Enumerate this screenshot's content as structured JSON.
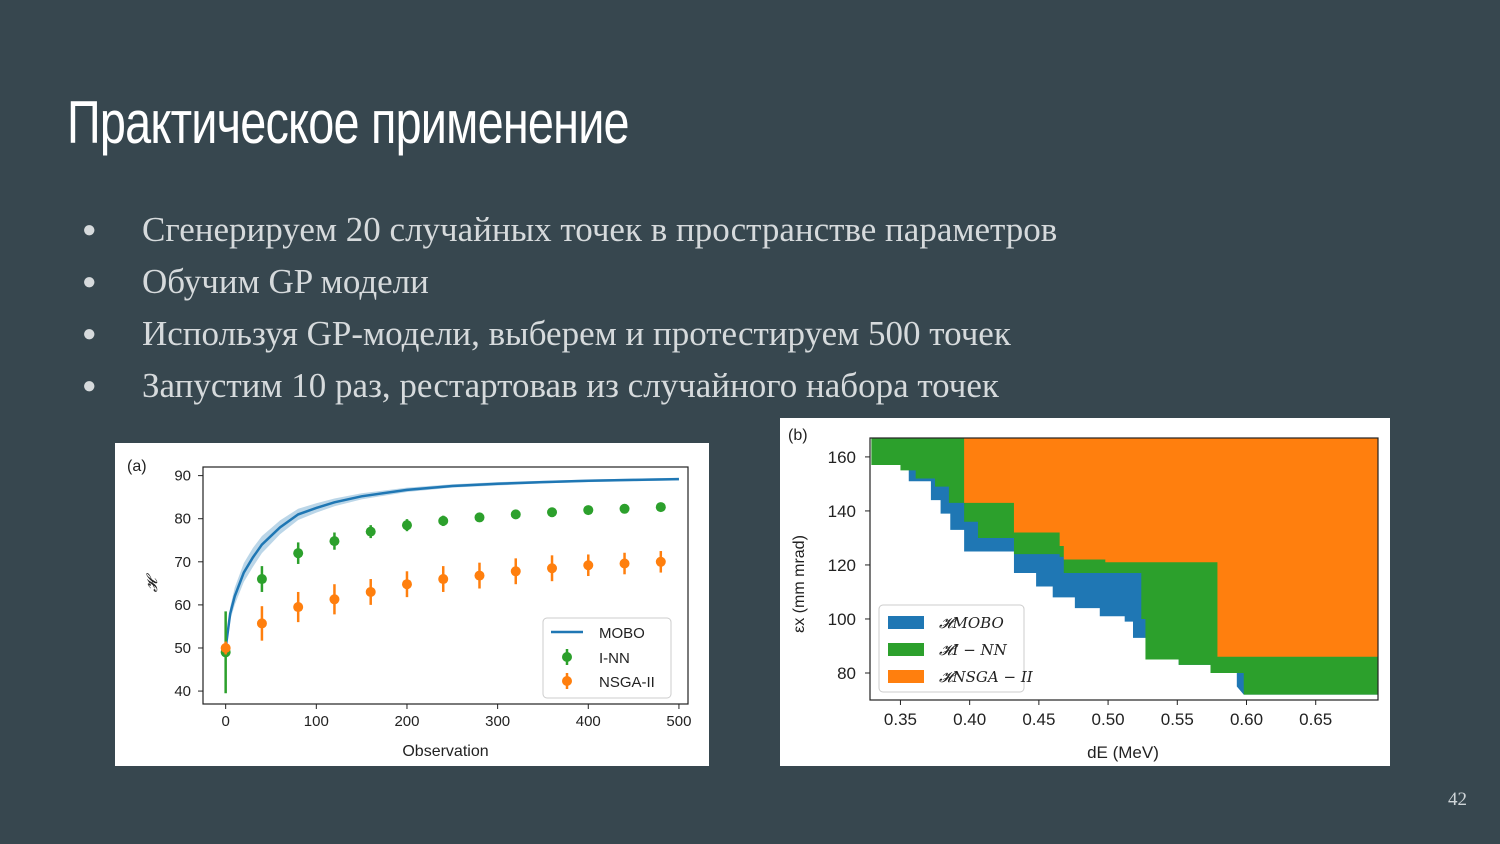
{
  "slide": {
    "title": "Практическое применение",
    "bullet_glyph": "●",
    "bullets": [
      "Сгенерируем 20 случайных точек в пространстве параметров",
      "Обучим GP модели",
      "Используя GP-модели, выберем и протестируем 500 точек",
      "Запустим 10 раз, рестартовав из случайного набора точек"
    ],
    "page_number": "42"
  },
  "colors": {
    "background": "#37474f",
    "blue": "#1f77b4",
    "green": "#2ca02c",
    "orange": "#ff7f0e"
  },
  "chart_data": [
    {
      "type": "line",
      "panel_label": "(a)",
      "xlabel": "Observation",
      "ylabel": "𝓗",
      "xlim": [
        -25,
        510
      ],
      "ylim": [
        37,
        92
      ],
      "xticks": [
        0,
        100,
        200,
        300,
        400,
        500
      ],
      "yticks": [
        40,
        50,
        60,
        70,
        80,
        90
      ],
      "legend_position": "lower-right",
      "series": [
        {
          "name": "MOBO",
          "kind": "line",
          "color": "#1f77b4",
          "x": [
            0,
            5,
            10,
            20,
            30,
            40,
            50,
            60,
            80,
            100,
            120,
            150,
            200,
            250,
            300,
            350,
            400,
            450,
            500
          ],
          "y": [
            50,
            58,
            62,
            67.5,
            71,
            74,
            76,
            78,
            81,
            82.5,
            83.8,
            85.2,
            86.7,
            87.6,
            88.1,
            88.5,
            88.8,
            89,
            89.2
          ],
          "band": [
            0,
            1.5,
            2,
            2.2,
            2.2,
            2,
            1.8,
            1.6,
            1.3,
            1.1,
            0.9,
            0.7,
            0.5,
            0.4,
            0.4,
            0.3,
            0.3,
            0.3,
            0.3
          ]
        },
        {
          "name": "I-NN",
          "kind": "errorbar",
          "color": "#2ca02c",
          "x": [
            0,
            40,
            80,
            120,
            160,
            200,
            240,
            280,
            320,
            360,
            400,
            440,
            480
          ],
          "y": [
            49,
            66,
            72,
            74.8,
            77,
            78.5,
            79.5,
            80.3,
            81,
            81.5,
            82,
            82.3,
            82.7
          ],
          "err": [
            9.5,
            3,
            2.5,
            2,
            1.5,
            1.4,
            1.2,
            1,
            1,
            1,
            0.9,
            0.8,
            0.8
          ]
        },
        {
          "name": "NSGA-II",
          "kind": "errorbar",
          "color": "#ff7f0e",
          "x": [
            0,
            40,
            80,
            120,
            160,
            200,
            240,
            280,
            320,
            360,
            400,
            440,
            480
          ],
          "y": [
            50,
            55.7,
            59.5,
            61.3,
            63,
            64.8,
            66,
            66.8,
            67.8,
            68.5,
            69.2,
            69.6,
            70
          ],
          "err": [
            1.5,
            4,
            3.5,
            3.5,
            3,
            3,
            3,
            3,
            3,
            3,
            2.5,
            2.5,
            2.5
          ]
        }
      ]
    },
    {
      "type": "area",
      "panel_label": "(b)",
      "xlabel": "dE (MeV)",
      "ylabel": "εx (mm mrad)",
      "xlim": [
        0.328,
        0.695
      ],
      "ylim": [
        70,
        167
      ],
      "xticks": [
        "0.35",
        "0.40",
        "0.45",
        "0.50",
        "0.55",
        "0.60",
        "0.65"
      ],
      "yticks": [
        80,
        100,
        120,
        140,
        160
      ],
      "legend_position": "lower-left",
      "series": [
        {
          "name": "𝓗MOBO",
          "color": "#1f77b4",
          "boundary_x": [
            0.335,
            0.341,
            0.341,
            0.356,
            0.356,
            0.372,
            0.372,
            0.379,
            0.379,
            0.386,
            0.386,
            0.396,
            0.396,
            0.432,
            0.432,
            0.448,
            0.448,
            0.46,
            0.46,
            0.476,
            0.476,
            0.494,
            0.494,
            0.512,
            0.512,
            0.518,
            0.518,
            0.531,
            0.531,
            0.551,
            0.551,
            0.574,
            0.574,
            0.593,
            0.593,
            0.598
          ],
          "boundary_y": [
            167,
            167,
            159,
            159,
            151,
            151,
            144,
            144,
            139,
            139,
            133,
            133,
            125,
            125,
            117,
            117,
            112,
            112,
            108,
            108,
            104,
            104,
            101,
            101,
            99,
            99,
            93,
            93,
            88,
            88,
            83,
            83,
            80,
            80,
            75,
            72
          ]
        },
        {
          "name": "𝓗I − NN",
          "color": "#2ca02c",
          "boundary_x": [
            0.329,
            0.35,
            0.35,
            0.361,
            0.361,
            0.375,
            0.375,
            0.385,
            0.385,
            0.396,
            0.396,
            0.406,
            0.406,
            0.432,
            0.432,
            0.465,
            0.465,
            0.468,
            0.468,
            0.524,
            0.524,
            0.527,
            0.527,
            0.551,
            0.551,
            0.574,
            0.574,
            0.598,
            0.598,
            0.695
          ],
          "boundary_y": [
            157,
            157,
            155,
            155,
            152,
            152,
            149,
            149,
            143,
            143,
            136,
            136,
            130,
            130,
            124,
            124,
            123,
            123,
            117,
            117,
            100,
            100,
            85,
            85,
            83,
            83,
            80,
            80,
            72,
            72
          ]
        },
        {
          "name": "𝓗NSGA − II",
          "color": "#ff7f0e",
          "boundary_x": [
            0.396,
            0.396,
            0.432,
            0.432,
            0.465,
            0.465,
            0.468,
            0.468,
            0.498,
            0.498,
            0.579,
            0.579,
            0.695
          ],
          "boundary_y": [
            167,
            143,
            143,
            132,
            132,
            127,
            127,
            122,
            122,
            121,
            121,
            86,
            86
          ]
        }
      ]
    }
  ]
}
